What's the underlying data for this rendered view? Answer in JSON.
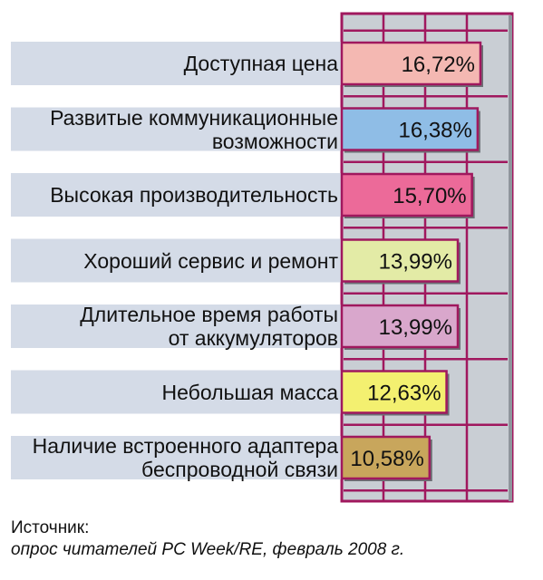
{
  "chart_data": {
    "type": "bar",
    "orientation": "horizontal",
    "categories": [
      "Доступная цена",
      "Развитые коммуникационные\nвозможности",
      "Высокая производительность",
      "Хороший сервис и ремонт",
      "Длительное время работы\nот аккумуляторов",
      "Небольшая масса",
      "Наличие встроенного адаптера\nбеспроводной связи"
    ],
    "values": [
      16.72,
      16.38,
      15.7,
      13.99,
      13.99,
      12.63,
      10.58
    ],
    "value_labels": [
      "16,72%",
      "16,38%",
      "15,70%",
      "13,99%",
      "13,99%",
      "12,63%",
      "10,58%"
    ],
    "bar_colors": [
      "#f4b8b2",
      "#8fbde6",
      "#ec6a99",
      "#e3eba6",
      "#d9a7cc",
      "#f3f070",
      "#c8a65c"
    ],
    "xlim": [
      0,
      25
    ],
    "grid": true,
    "title": "",
    "xlabel": "",
    "ylabel": ""
  },
  "source": {
    "title": "Источник:",
    "text": "опрос читателей PC Week/RE, февраль 2008 г."
  },
  "colors": {
    "frame": "#a0185e",
    "panel": "#c9ced4",
    "label_band": "#d4dbe7"
  }
}
